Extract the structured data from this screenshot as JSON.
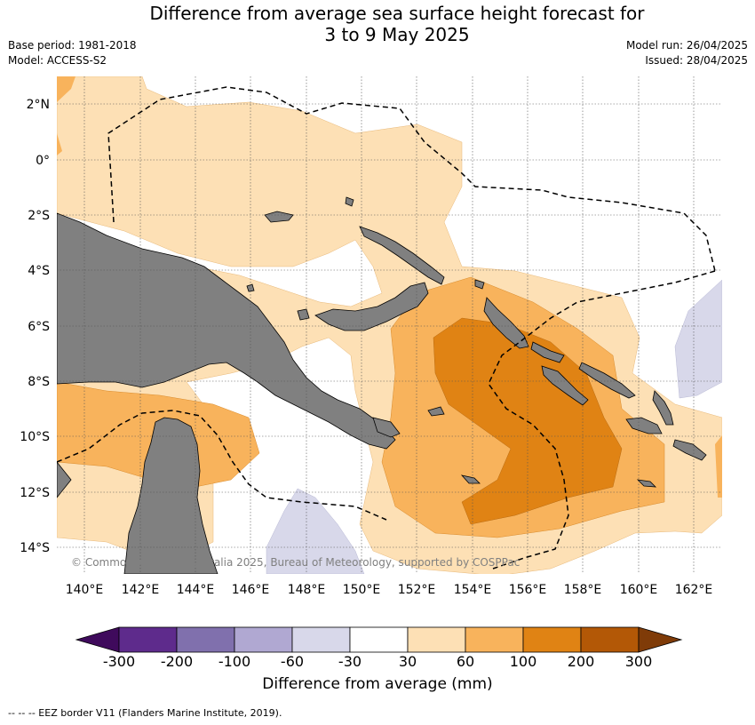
{
  "header": {
    "title_line1": "Difference from average sea surface height forecast for",
    "title_line2": "3 to 9 May 2025",
    "base_period": "Base period: 1981-2018",
    "model": "Model: ACCESS-S2",
    "model_run": "Model run: 26/04/2025",
    "issued": "Issued: 28/04/2025"
  },
  "map": {
    "lat_labels": [
      "2°N",
      "0°",
      "2°S",
      "4°S",
      "6°S",
      "8°S",
      "10°S",
      "12°S",
      "14°S"
    ],
    "lon_labels": [
      "140°E",
      "142°E",
      "144°E",
      "146°E",
      "148°E",
      "150°E",
      "152°E",
      "154°E",
      "156°E",
      "158°E",
      "160°E",
      "162°E"
    ],
    "copyright": "© Commonwealth of Australia 2025, Bureau of Meteorology, supported by COSPPac",
    "colors": {
      "land": "#808080",
      "p30": "#fde0b5",
      "p60": "#f8b35c",
      "p100": "#e08314",
      "n60": "#d8d8ea"
    }
  },
  "colorbar": {
    "ticks": [
      "-300",
      "-200",
      "-100",
      "-60",
      "-30",
      "30",
      "60",
      "100",
      "200",
      "300"
    ],
    "colors": [
      "#3f0a5c",
      "#5e2b8c",
      "#8070ad",
      "#b0a8d2",
      "#d8d8ea",
      "#ffffff",
      "#fde0b5",
      "#f8b35c",
      "#e08314",
      "#b35806",
      "#7f3b08"
    ],
    "label": "Difference from average (mm)"
  },
  "footer": {
    "legend_text": "--  --  -- EEZ border V11 (Flanders Marine Institute, 2019)."
  }
}
